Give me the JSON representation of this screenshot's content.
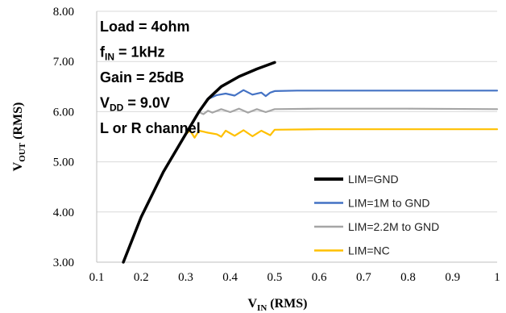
{
  "chart_data": {
    "type": "line",
    "title": "",
    "xlabel": {
      "main": "V",
      "sub": "IN",
      "rest": " (RMS)"
    },
    "ylabel": {
      "main": "V",
      "sub": "OUT",
      "rest": " (RMS)"
    },
    "xlim": [
      0.1,
      1.0
    ],
    "ylim": [
      3.0,
      8.0
    ],
    "xticks": [
      "0.1",
      "0.2",
      "0.3",
      "0.4",
      "0.5",
      "0.6",
      "0.7",
      "0.8",
      "0.9",
      "1"
    ],
    "yticks": [
      "3.00",
      "4.00",
      "5.00",
      "6.00",
      "7.00",
      "8.00"
    ],
    "grid": "horizontal",
    "legend_position": "bottom-right",
    "annotations": [
      {
        "main": "Load = 4ohm",
        "sub": "",
        "rest": ""
      },
      {
        "main": "f",
        "sub": "IN",
        "rest": " = 1kHz"
      },
      {
        "main": "Gain = 25dB",
        "sub": "",
        "rest": ""
      },
      {
        "main": "V",
        "sub": "DD",
        "rest": " = 9.0V"
      },
      {
        "main": "L or R channel",
        "sub": "",
        "rest": ""
      }
    ],
    "series": [
      {
        "name": "LIM=GND",
        "color": "#000000",
        "points": [
          [
            0.16,
            3.0
          ],
          [
            0.2,
            3.9
          ],
          [
            0.25,
            4.8
          ],
          [
            0.3,
            5.55
          ],
          [
            0.33,
            6.0
          ],
          [
            0.35,
            6.25
          ],
          [
            0.38,
            6.5
          ],
          [
            0.42,
            6.7
          ],
          [
            0.46,
            6.85
          ],
          [
            0.5,
            6.98
          ]
        ]
      },
      {
        "name": "LIM=1M to GND",
        "color": "#4472C4",
        "points": [
          [
            0.16,
            3.0
          ],
          [
            0.2,
            3.9
          ],
          [
            0.25,
            4.8
          ],
          [
            0.3,
            5.55
          ],
          [
            0.33,
            6.0
          ],
          [
            0.35,
            6.25
          ],
          [
            0.37,
            6.33
          ],
          [
            0.39,
            6.36
          ],
          [
            0.41,
            6.32
          ],
          [
            0.43,
            6.43
          ],
          [
            0.45,
            6.34
          ],
          [
            0.47,
            6.38
          ],
          [
            0.48,
            6.31
          ],
          [
            0.49,
            6.38
          ],
          [
            0.5,
            6.41
          ],
          [
            0.55,
            6.42
          ],
          [
            0.7,
            6.42
          ],
          [
            0.85,
            6.42
          ],
          [
            1.0,
            6.42
          ]
        ]
      },
      {
        "name": "LIM=2.2M to GND",
        "color": "#A5A5A5",
        "points": [
          [
            0.16,
            3.0
          ],
          [
            0.2,
            3.9
          ],
          [
            0.25,
            4.8
          ],
          [
            0.3,
            5.55
          ],
          [
            0.32,
            5.85
          ],
          [
            0.33,
            5.99
          ],
          [
            0.34,
            5.95
          ],
          [
            0.35,
            6.02
          ],
          [
            0.36,
            5.98
          ],
          [
            0.38,
            6.05
          ],
          [
            0.4,
            5.99
          ],
          [
            0.42,
            6.06
          ],
          [
            0.44,
            5.98
          ],
          [
            0.46,
            6.05
          ],
          [
            0.48,
            5.99
          ],
          [
            0.5,
            6.05
          ],
          [
            0.6,
            6.06
          ],
          [
            0.8,
            6.06
          ],
          [
            1.0,
            6.05
          ]
        ]
      },
      {
        "name": "LIM=NC",
        "color": "#FFC000",
        "points": [
          [
            0.16,
            3.0
          ],
          [
            0.2,
            3.9
          ],
          [
            0.25,
            4.8
          ],
          [
            0.3,
            5.55
          ],
          [
            0.31,
            5.62
          ],
          [
            0.32,
            5.48
          ],
          [
            0.33,
            5.62
          ],
          [
            0.35,
            5.58
          ],
          [
            0.37,
            5.55
          ],
          [
            0.38,
            5.5
          ],
          [
            0.39,
            5.62
          ],
          [
            0.41,
            5.52
          ],
          [
            0.43,
            5.63
          ],
          [
            0.45,
            5.51
          ],
          [
            0.47,
            5.62
          ],
          [
            0.49,
            5.53
          ],
          [
            0.5,
            5.64
          ],
          [
            0.6,
            5.65
          ],
          [
            0.8,
            5.65
          ],
          [
            1.0,
            5.65
          ]
        ]
      }
    ]
  }
}
